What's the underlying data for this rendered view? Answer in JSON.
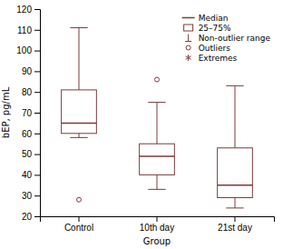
{
  "chart_data": {
    "type": "box",
    "xlabel": "Group",
    "ylabel": "bEP, pg/mL",
    "categories": [
      "Control",
      "10th day",
      "21st day"
    ],
    "boxes": [
      {
        "median": 65,
        "q1": 60,
        "q3": 81,
        "whislo": 58,
        "whishi": 111,
        "outliers": [
          28
        ],
        "extremes": []
      },
      {
        "median": 49,
        "q1": 40,
        "q3": 55,
        "whislo": 33,
        "whishi": 75,
        "outliers": [
          86
        ],
        "extremes": []
      },
      {
        "median": 35,
        "q1": 29,
        "q3": 53,
        "whislo": 24,
        "whishi": 83,
        "outliers": [],
        "extremes": []
      }
    ],
    "color": "#7B3B3B",
    "ylim": [
      20,
      120
    ],
    "yticks": [
      20,
      30,
      40,
      50,
      60,
      70,
      80,
      90,
      100,
      110,
      120
    ],
    "legend": "upper right",
    "legend_items": [
      "Median",
      "25–75%",
      "Non-outlier range",
      "Outliers",
      "Extremes"
    ]
  }
}
